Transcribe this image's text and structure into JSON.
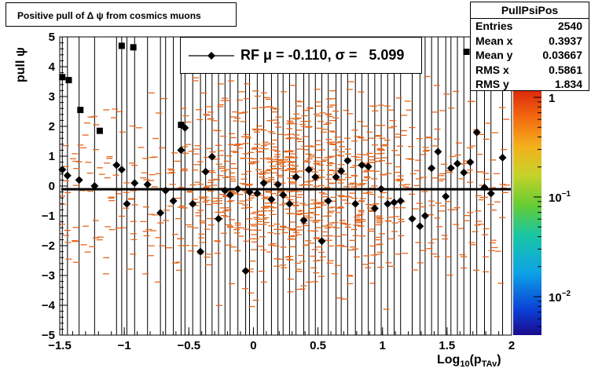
{
  "title": "Positive pull of Δ ψ from cosmics muons",
  "stats": {
    "name": "PullPsiPos",
    "rows": [
      {
        "label": "Entries",
        "value": "2540"
      },
      {
        "label": "Mean x",
        "value": "0.3937"
      },
      {
        "label": "Mean y",
        "value": "0.03667"
      },
      {
        "label": "RMS x",
        "value": "0.5861"
      },
      {
        "label": "RMS y",
        "value": "1.834"
      }
    ]
  },
  "legend": {
    "label": "RF μ = -0.110, σ =   5.099"
  },
  "colors": {
    "histogram": "#e8661a",
    "profile": "#000000",
    "fit": "#000000"
  },
  "chart_data": {
    "type": "scatter",
    "title": "Positive pull of Δ ψ from cosmics muons",
    "xlabel": "Log10(pTAv)",
    "ylabel": "pull ψ",
    "xlim": [
      -1.5,
      2
    ],
    "ylim": [
      -5,
      5
    ],
    "xticks": [
      "−1.5",
      "−1",
      "−0.5",
      "0",
      "0.5",
      "1",
      "1.5",
      "2"
    ],
    "yticks": [
      "−5",
      "−4",
      "−3",
      "−2",
      "−1",
      "0",
      "1",
      "2",
      "3",
      "4",
      "5"
    ],
    "colorbar": {
      "scale": "log",
      "labels": [
        "1",
        "10−1",
        "10−2"
      ]
    },
    "fit_line": {
      "mean": -0.11,
      "sigma": 5.099
    },
    "series": [
      {
        "name": "RF",
        "marker": "diamond",
        "points": [
          [
            -1.48,
            0.55
          ],
          [
            -1.44,
            0.35
          ],
          [
            -1.35,
            0.2
          ],
          [
            -1.23,
            0.0
          ],
          [
            -1.06,
            0.7
          ],
          [
            -1.02,
            0.55
          ],
          [
            -0.98,
            -0.6
          ],
          [
            -0.92,
            0.1
          ],
          [
            -0.82,
            0.05
          ],
          [
            -0.72,
            -0.9
          ],
          [
            -0.68,
            -0.15
          ],
          [
            -0.62,
            -0.5
          ],
          [
            -0.56,
            1.2
          ],
          [
            -0.53,
            1.95
          ],
          [
            -0.47,
            -0.6
          ],
          [
            -0.41,
            -2.2
          ],
          [
            -0.37,
            0.48
          ],
          [
            -0.32,
            0.98
          ],
          [
            -0.27,
            -1.1
          ],
          [
            -0.22,
            -0.15
          ],
          [
            -0.18,
            -0.3
          ],
          [
            -0.12,
            -0.1
          ],
          [
            -0.06,
            -2.85
          ],
          [
            -0.03,
            -0.2
          ],
          [
            0.03,
            -0.25
          ],
          [
            0.08,
            0.1
          ],
          [
            0.14,
            -0.45
          ],
          [
            0.19,
            0.05
          ],
          [
            0.23,
            -0.3
          ],
          [
            0.28,
            -0.6
          ],
          [
            0.33,
            0.3
          ],
          [
            0.39,
            -1.15
          ],
          [
            0.43,
            0.55
          ],
          [
            0.48,
            0.3
          ],
          [
            0.53,
            -1.85
          ],
          [
            0.58,
            -0.5
          ],
          [
            0.64,
            0.3
          ],
          [
            0.68,
            0.5
          ],
          [
            0.73,
            0.85
          ],
          [
            0.79,
            -0.6
          ],
          [
            0.84,
            0.7
          ],
          [
            0.89,
            0.65
          ],
          [
            0.94,
            -0.75
          ],
          [
            0.99,
            -0.1
          ],
          [
            1.04,
            -0.6
          ],
          [
            1.09,
            -0.55
          ],
          [
            1.14,
            -0.5
          ],
          [
            1.23,
            -1.1
          ],
          [
            1.29,
            -1.35
          ],
          [
            1.33,
            -1.0
          ],
          [
            1.38,
            0.6
          ],
          [
            1.43,
            1.15
          ],
          [
            1.49,
            -0.35
          ],
          [
            1.53,
            0.6
          ],
          [
            1.58,
            0.75
          ],
          [
            1.63,
            0.45
          ],
          [
            1.68,
            0.8
          ],
          [
            1.73,
            1.8
          ],
          [
            1.79,
            -0.05
          ],
          [
            1.84,
            -0.25
          ],
          [
            1.93,
            0.95
          ]
        ]
      },
      {
        "name": "",
        "marker": "square",
        "points": [
          [
            -1.48,
            3.65
          ],
          [
            -1.43,
            3.55
          ],
          [
            -1.34,
            2.55
          ],
          [
            -1.19,
            1.85
          ],
          [
            -1.02,
            4.7
          ],
          [
            -0.93,
            4.65
          ],
          [
            -0.56,
            2.05
          ],
          [
            1.65,
            4.5
          ]
        ]
      }
    ]
  }
}
